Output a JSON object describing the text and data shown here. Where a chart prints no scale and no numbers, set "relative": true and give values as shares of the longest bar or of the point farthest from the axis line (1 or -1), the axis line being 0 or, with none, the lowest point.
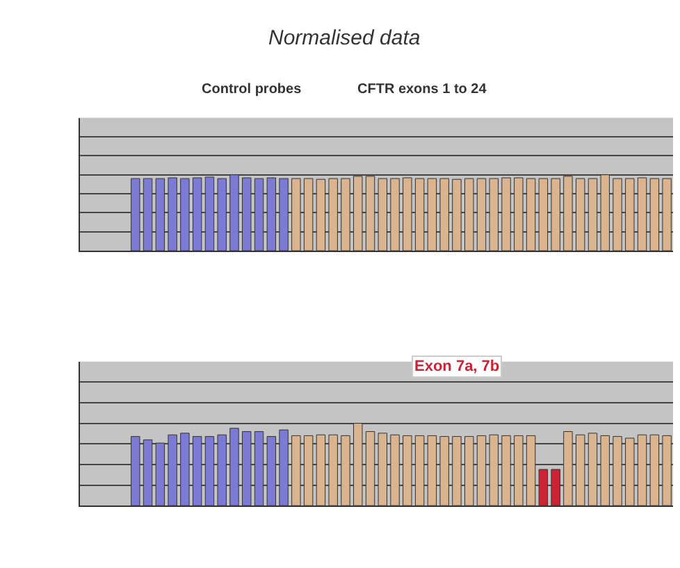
{
  "chart_data": [
    {
      "type": "bar",
      "title": "Normalised data",
      "annotations": [
        "Control probes",
        "CFTR exons 1 to 24"
      ],
      "relative": true,
      "grid": "y",
      "legend": false,
      "categories": [
        null,
        null,
        null,
        null,
        null,
        null,
        null,
        null,
        null,
        null,
        null,
        null,
        null,
        null,
        null,
        null,
        null,
        null,
        null,
        null,
        null,
        null,
        null,
        null,
        null,
        null,
        null,
        null,
        null,
        null,
        null,
        null,
        null,
        null,
        null,
        null,
        null,
        null,
        null,
        null,
        null,
        null,
        null,
        null
      ],
      "values": [
        0.95,
        0.95,
        0.95,
        0.96,
        0.95,
        0.96,
        0.97,
        0.95,
        1.0,
        0.96,
        0.95,
        0.96,
        0.95,
        0.95,
        0.95,
        0.94,
        0.95,
        0.95,
        0.98,
        0.98,
        0.95,
        0.95,
        0.96,
        0.95,
        0.95,
        0.95,
        0.94,
        0.95,
        0.95,
        0.95,
        0.96,
        0.96,
        0.95,
        0.95,
        0.95,
        0.98,
        0.95,
        0.95,
        1.0,
        0.95,
        0.95,
        0.96,
        0.95,
        0.95
      ],
      "colors": [
        "#7b7bd6",
        "#7b7bd6",
        "#7b7bd6",
        "#7b7bd6",
        "#7b7bd6",
        "#7b7bd6",
        "#7b7bd6",
        "#7b7bd6",
        "#7b7bd6",
        "#7b7bd6",
        "#7b7bd6",
        "#7b7bd6",
        "#7b7bd6",
        "#d9b48f",
        "#d9b48f",
        "#d9b48f",
        "#d9b48f",
        "#d9b48f",
        "#d9b48f",
        "#d9b48f",
        "#d9b48f",
        "#d9b48f",
        "#d9b48f",
        "#d9b48f",
        "#d9b48f",
        "#d9b48f",
        "#d9b48f",
        "#d9b48f",
        "#d9b48f",
        "#d9b48f",
        "#d9b48f",
        "#d9b48f",
        "#d9b48f",
        "#d9b48f",
        "#d9b48f",
        "#d9b48f",
        "#d9b48f",
        "#d9b48f",
        "#d9b48f",
        "#d9b48f",
        "#d9b48f",
        "#d9b48f",
        "#d9b48f",
        "#d9b48f"
      ]
    },
    {
      "type": "bar",
      "annotations": [
        "Exon 7a, 7b"
      ],
      "relative": true,
      "grid": "y",
      "legend": false,
      "categories": [
        null,
        null,
        null,
        null,
        null,
        null,
        null,
        null,
        null,
        null,
        null,
        null,
        null,
        null,
        null,
        null,
        null,
        null,
        null,
        null,
        null,
        null,
        null,
        null,
        null,
        null,
        null,
        null,
        null,
        null,
        null,
        null,
        null,
        null,
        null,
        null,
        null,
        null,
        null,
        null,
        null,
        null,
        null,
        null
      ],
      "values": [
        0.84,
        0.8,
        0.76,
        0.86,
        0.88,
        0.84,
        0.84,
        0.86,
        0.94,
        0.9,
        0.9,
        0.84,
        0.92,
        0.85,
        0.85,
        0.86,
        0.86,
        0.85,
        1.0,
        0.9,
        0.88,
        0.86,
        0.85,
        0.85,
        0.85,
        0.84,
        0.84,
        0.84,
        0.85,
        0.86,
        0.85,
        0.85,
        0.85,
        0.44,
        0.44,
        0.9,
        0.86,
        0.88,
        0.85,
        0.84,
        0.82,
        0.86,
        0.86,
        0.85
      ],
      "colors": [
        "#7b7bd6",
        "#7b7bd6",
        "#7b7bd6",
        "#7b7bd6",
        "#7b7bd6",
        "#7b7bd6",
        "#7b7bd6",
        "#7b7bd6",
        "#7b7bd6",
        "#7b7bd6",
        "#7b7bd6",
        "#7b7bd6",
        "#7b7bd6",
        "#d9b48f",
        "#d9b48f",
        "#d9b48f",
        "#d9b48f",
        "#d9b48f",
        "#d9b48f",
        "#d9b48f",
        "#d9b48f",
        "#d9b48f",
        "#d9b48f",
        "#d9b48f",
        "#d9b48f",
        "#d9b48f",
        "#d9b48f",
        "#d9b48f",
        "#d9b48f",
        "#d9b48f",
        "#d9b48f",
        "#d9b48f",
        "#d9b48f",
        "#cc2233",
        "#cc2233",
        "#d9b48f",
        "#d9b48f",
        "#d9b48f",
        "#d9b48f",
        "#d9b48f",
        "#d9b48f",
        "#d9b48f",
        "#d9b48f",
        "#d9b48f"
      ]
    }
  ]
}
